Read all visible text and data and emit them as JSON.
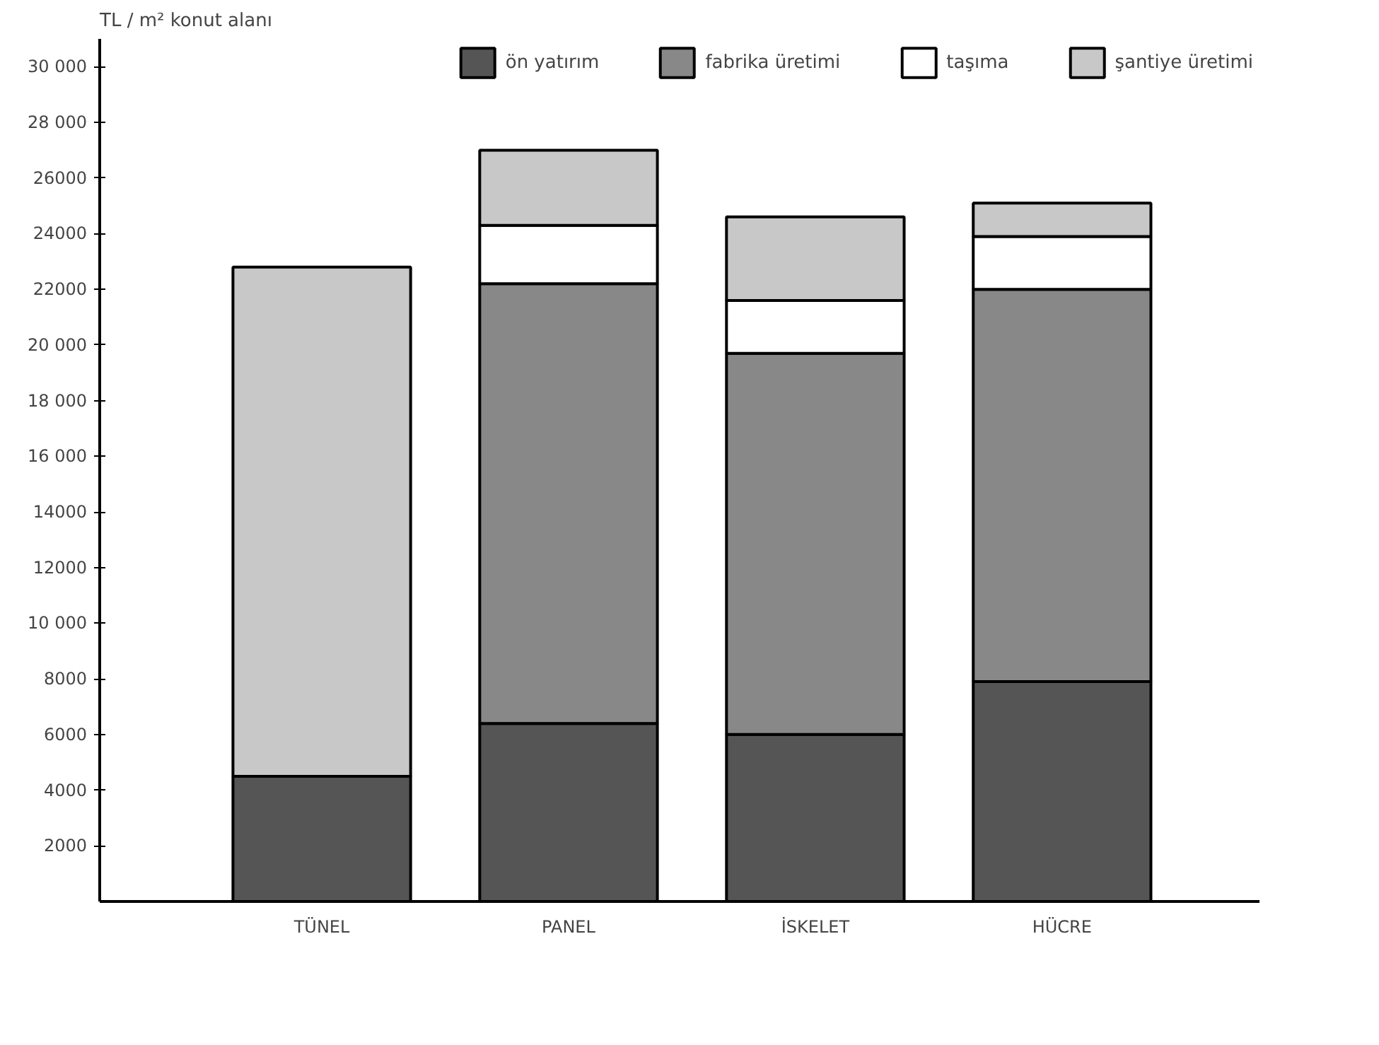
{
  "chart_data": {
    "type": "bar",
    "stacked": true,
    "ylabel": "TL / m² konut alanı",
    "categories": [
      "TÜNEL",
      "PANEL",
      "İSKELET",
      "HÜCRE"
    ],
    "series": [
      {
        "name": "ön yatırım",
        "color": "#555555",
        "values": [
          4500,
          6400,
          6000,
          7900
        ]
      },
      {
        "name": "fabrika üretimi",
        "color": "#888888",
        "values": [
          0,
          15800,
          13700,
          14100
        ]
      },
      {
        "name": "taşıma",
        "color": "#ffffff",
        "values": [
          0,
          2100,
          1900,
          1900
        ]
      },
      {
        "name": "şantiye üretimi",
        "color": "#c8c8c8",
        "values": [
          18300,
          2700,
          3000,
          1200
        ]
      }
    ],
    "ylim": [
      0,
      31000
    ],
    "yticks": [
      {
        "value": 2000,
        "label": "2000"
      },
      {
        "value": 4000,
        "label": "4000"
      },
      {
        "value": 6000,
        "label": "6000"
      },
      {
        "value": 8000,
        "label": "8000"
      },
      {
        "value": 10000,
        "label": "10 000"
      },
      {
        "value": 12000,
        "label": "12000"
      },
      {
        "value": 14000,
        "label": "14000"
      },
      {
        "value": 16000,
        "label": "16 000"
      },
      {
        "value": 18000,
        "label": "18 000"
      },
      {
        "value": 20000,
        "label": "20 000"
      },
      {
        "value": 22000,
        "label": "22000"
      },
      {
        "value": 24000,
        "label": "24000"
      },
      {
        "value": 26000,
        "label": "26000"
      },
      {
        "value": 28000,
        "label": "28 000"
      },
      {
        "value": 30000,
        "label": "30 000"
      }
    ],
    "grid": false,
    "legend": "top"
  }
}
